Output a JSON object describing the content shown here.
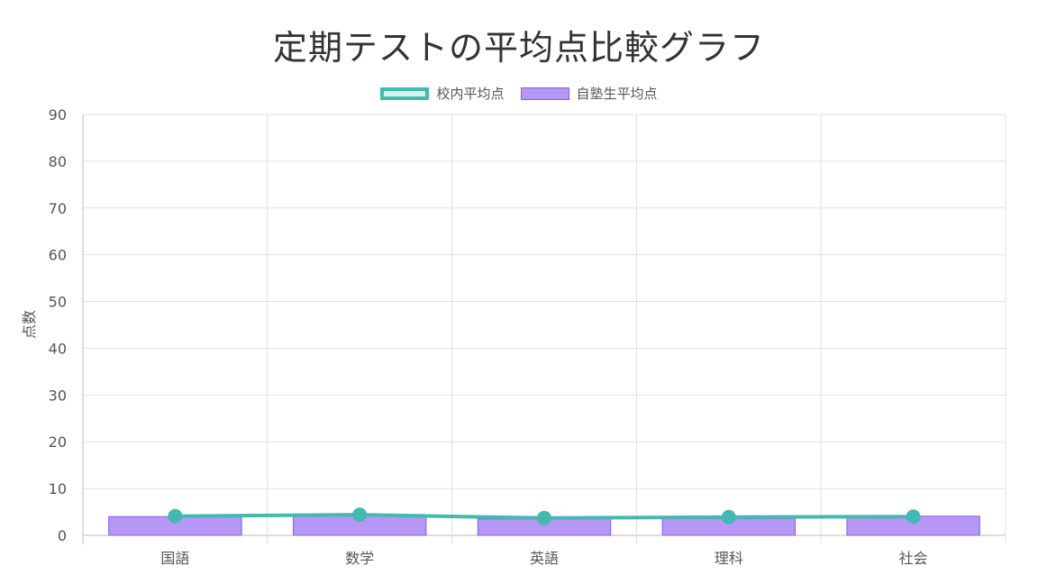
{
  "chart_data": {
    "type": "bar",
    "title": "定期テストの平均点比較グラフ",
    "xlabel": "",
    "ylabel": "点数",
    "categories": [
      "国語",
      "数学",
      "英語",
      "理科",
      "社会"
    ],
    "ylim": [
      0,
      90
    ],
    "yticks": [
      0,
      10,
      20,
      30,
      40,
      50,
      60,
      70,
      80,
      90
    ],
    "grid": true,
    "legend_position": "top-center",
    "series": [
      {
        "name": "校内平均点",
        "type": "line",
        "color": "#44b9b0",
        "values": [
          4.1,
          4.4,
          3.7,
          3.9,
          4.0
        ]
      },
      {
        "name": "自塾生平均点",
        "type": "bar",
        "color": "#b697f6",
        "border": "#8e5ce6",
        "values": [
          4.0,
          4.2,
          3.5,
          3.6,
          4.1
        ]
      }
    ]
  }
}
